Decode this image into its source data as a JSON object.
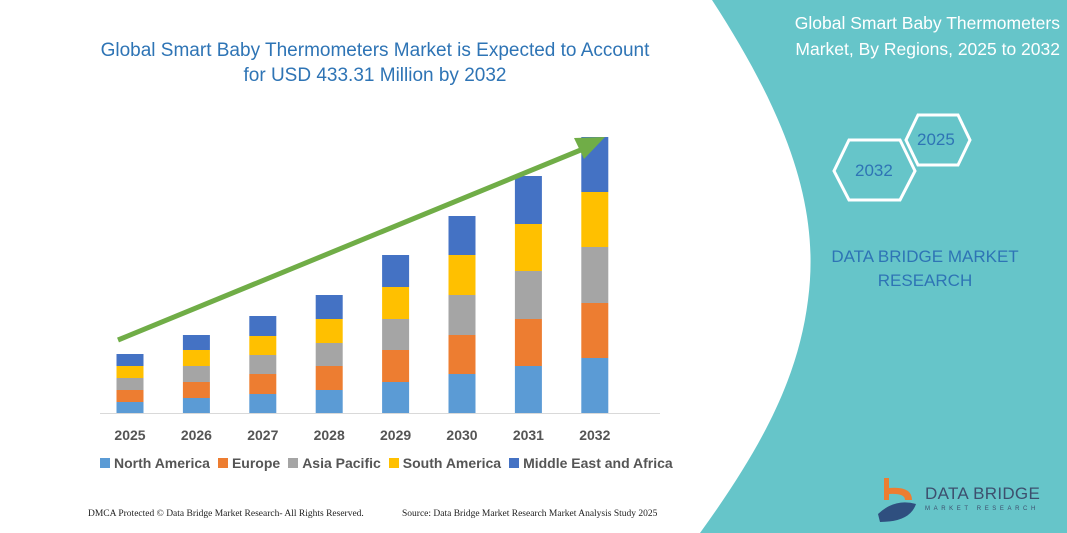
{
  "header": {
    "title_line1": "Global Smart Baby Thermometers Market is Expected to Account",
    "title_line2": "for USD 433.31 Million by 2032"
  },
  "side_panel": {
    "title_line1": "Global Smart Baby Thermometers",
    "title_line2": "Market, By Regions, 2025 to 2032",
    "hex_start": "2025",
    "hex_end": "2032",
    "brand_line1": "DATA BRIDGE MARKET",
    "brand_line2": "RESEARCH",
    "logo_text": "DATA BRIDGE",
    "logo_subtext": "MARKET RESEARCH",
    "panel_color": "#66c5c9"
  },
  "footer": {
    "left": "DMCA Protected © Data Bridge Market Research- All Rights Reserved.",
    "right": "Source: Data Bridge Market Research Market Analysis Study 2025"
  },
  "chart_data": {
    "type": "bar",
    "stacked": true,
    "title": "Global Smart Baby Thermometers Market is Expected to Account for USD 433.31 Million by 2032",
    "categories": [
      "2025",
      "2026",
      "2027",
      "2028",
      "2029",
      "2030",
      "2031",
      "2032"
    ],
    "series": [
      {
        "name": "North America",
        "color": "#5b9bd5",
        "values": [
          11,
          15,
          19,
          23,
          31,
          39,
          47,
          55
        ]
      },
      {
        "name": "Europe",
        "color": "#ed7d31",
        "values": [
          12,
          16,
          20,
          24,
          32,
          39,
          47,
          55
        ]
      },
      {
        "name": "Asia Pacific",
        "color": "#a5a5a5",
        "values": [
          12,
          16,
          19,
          23,
          31,
          40,
          48,
          56
        ]
      },
      {
        "name": "South America",
        "color": "#ffc000",
        "values": [
          12,
          16,
          19,
          24,
          32,
          40,
          47,
          55
        ]
      },
      {
        "name": "Middle East and Africa",
        "color": "#4472c4",
        "values": [
          12,
          15,
          20,
          24,
          32,
          39,
          48,
          55
        ]
      }
    ],
    "y_axis_shown": false,
    "grid": false,
    "legend_position": "bottom",
    "trend_arrow_color": "#70ad47"
  }
}
